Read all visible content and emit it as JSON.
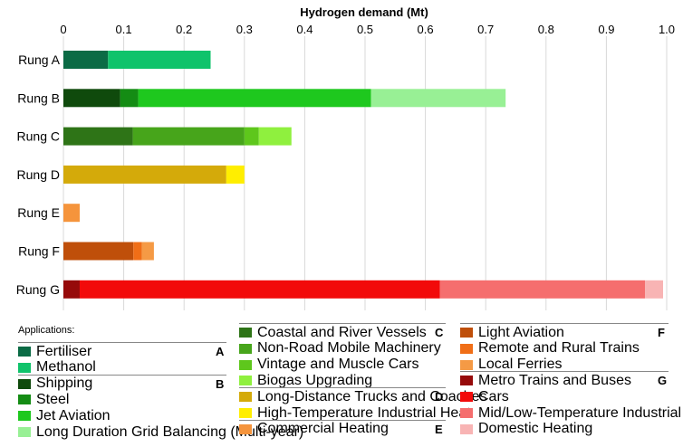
{
  "chart_data": {
    "type": "bar",
    "orientation": "horizontal",
    "stacked": true,
    "title": "Hydrogen demand (Mt)",
    "xlim": [
      0,
      1.0
    ],
    "ticks": [
      "0",
      "0.1",
      "0.2",
      "0.3",
      "0.4",
      "0.5",
      "0.6",
      "0.7",
      "0.8",
      "0.9",
      "1.0"
    ],
    "tick_values": [
      0,
      0.1,
      0.2,
      0.3,
      0.4,
      0.5,
      0.6,
      0.7,
      0.8,
      0.9,
      1.0
    ],
    "grid": true,
    "categories": [
      "Rung A",
      "Rung B",
      "Rung C",
      "Rung D",
      "Rung E",
      "Rung F",
      "Rung G"
    ],
    "segments": [
      [
        {
          "app": "Fertiliser",
          "value": 0.074
        },
        {
          "app": "Methanol",
          "value": 0.17
        }
      ],
      [
        {
          "app": "Shipping",
          "value": 0.094
        },
        {
          "app": "Steel",
          "value": 0.03
        },
        {
          "app": "Jet Aviation",
          "value": 0.386
        },
        {
          "app": "Long Duration Grid Balancing (Multi-year)",
          "value": 0.223
        }
      ],
      [
        {
          "app": "Coastal and River Vessels",
          "value": 0.115
        },
        {
          "app": "Non-Road Mobile Machinery",
          "value": 0.185
        },
        {
          "app": "Vintage and Muscle Cars",
          "value": 0.024
        },
        {
          "app": "Biogas Upgrading",
          "value": 0.054
        }
      ],
      [
        {
          "app": "Long-Distance Trucks and Coaches",
          "value": 0.27
        },
        {
          "app": "High-Temperature Industrial Heat",
          "value": 0.03
        }
      ],
      [
        {
          "app": "Commercial Heating",
          "value": 0.027
        }
      ],
      [
        {
          "app": "Light Aviation",
          "value": 0.116
        },
        {
          "app": "Remote and Rural Trains",
          "value": 0.014
        },
        {
          "app": "Local Ferries",
          "value": 0.02
        }
      ],
      [
        {
          "app": "Metro Trains and Buses",
          "value": 0.027
        },
        {
          "app": "Cars",
          "value": 0.597
        },
        {
          "app": "Mid/Low-Temperature Industrial Heat",
          "value": 0.34
        },
        {
          "app": "Domestic Heating",
          "value": 0.03
        }
      ]
    ],
    "legend": {
      "title": "Applications:",
      "groups": [
        {
          "letter": "A",
          "items": [
            {
              "label": "Fertiliser",
              "color": "#0b6b45"
            },
            {
              "label": "Methanol",
              "color": "#10c36b"
            }
          ]
        },
        {
          "letter": "B",
          "items": [
            {
              "label": "Shipping",
              "color": "#0f4a0c"
            },
            {
              "label": "Steel",
              "color": "#148c14"
            },
            {
              "label": "Jet Aviation",
              "color": "#1ec81e"
            },
            {
              "label": "Long Duration Grid Balancing (Multi-year)",
              "color": "#98f095"
            }
          ]
        },
        {
          "letter": "C",
          "items": [
            {
              "label": "Coastal and River Vessels",
              "color": "#2e7417"
            },
            {
              "label": "Non-Road Mobile Machinery",
              "color": "#47a51b"
            },
            {
              "label": "Vintage and Muscle Cars",
              "color": "#5ec71c"
            },
            {
              "label": "Biogas Upgrading",
              "color": "#8ff03e"
            }
          ]
        },
        {
          "letter": "D",
          "items": [
            {
              "label": "Long-Distance Trucks and Coaches",
              "color": "#d4aa0a"
            },
            {
              "label": "High-Temperature Industrial Heat",
              "color": "#ffee00"
            }
          ]
        },
        {
          "letter": "E",
          "items": [
            {
              "label": "Commercial Heating",
              "color": "#f5943c"
            }
          ]
        },
        {
          "letter": "F",
          "items": [
            {
              "label": "Light Aviation",
              "color": "#bf4f0a"
            },
            {
              "label": "Remote and Rural Trains",
              "color": "#f06e17"
            },
            {
              "label": "Local Ferries",
              "color": "#f59a45"
            }
          ]
        },
        {
          "letter": "G",
          "items": [
            {
              "label": "Metro Trains and Buses",
              "color": "#960a0a"
            },
            {
              "label": "Cars",
              "color": "#f20a0a"
            },
            {
              "label": "Mid/Low-Temperature Industrial Heat",
              "color": "#f56e6e"
            },
            {
              "label": "Domestic Heating",
              "color": "#f8b4b4"
            }
          ]
        }
      ]
    }
  }
}
